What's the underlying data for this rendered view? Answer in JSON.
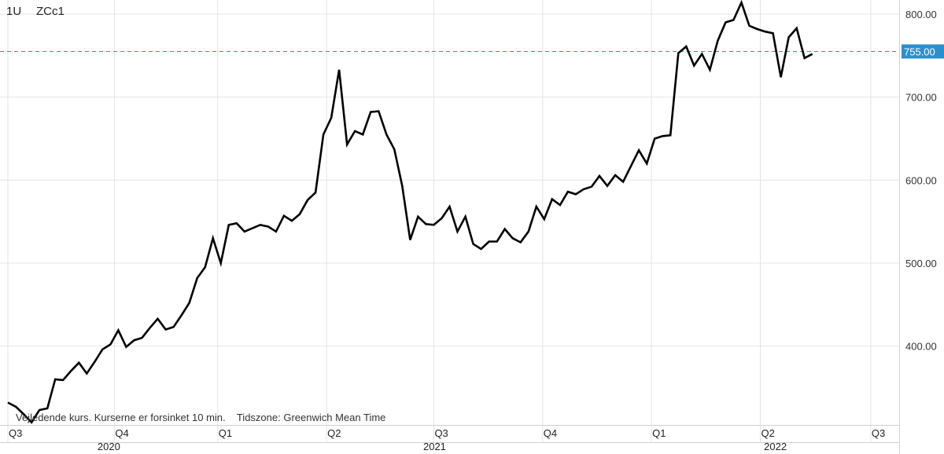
{
  "header": {
    "interval": "1U",
    "symbol": "ZCc1"
  },
  "disclaimer": "Vejledende kurs. Kurserne er forsinket 10 min.    Tidszone: Greenwich Mean Time",
  "colors": {
    "line": "#000000",
    "grid": "#e4e4e4",
    "reference": "#d9534f",
    "marker_bg": "#2b8fcf",
    "marker_text": "#ffffff"
  },
  "chart_data": {
    "type": "line",
    "x_unit": "weeks",
    "ylim": [
      305,
      817
    ],
    "y_ticks": [
      400,
      500,
      600,
      700,
      800
    ],
    "y_tick_labels": [
      "400.00",
      "500.00",
      "600.00",
      "700.00",
      "800.00"
    ],
    "y_axis_side": "right",
    "grid": true,
    "quarters": [
      {
        "label": "Q3",
        "x": 0
      },
      {
        "label": "Q4",
        "x": 13.5
      },
      {
        "label": "Q1",
        "x": 26.6
      },
      {
        "label": "Q2",
        "x": 40.4
      },
      {
        "label": "Q3",
        "x": 54.0
      },
      {
        "label": "Q4",
        "x": 67.8
      },
      {
        "label": "Q1",
        "x": 81.6
      },
      {
        "label": "Q2",
        "x": 95.4
      },
      {
        "label": "Q3",
        "x": 109.4
      }
    ],
    "years": [
      {
        "label": "2020",
        "x_start": -1,
        "x_end": 26.6
      },
      {
        "label": "2021",
        "x_start": 26.6,
        "x_end": 81.6
      },
      {
        "label": "2022",
        "x_start": 81.6,
        "x_end": 113
      }
    ],
    "reference_line": {
      "value": 755,
      "label": "755.00",
      "style": "dashed"
    },
    "x_range": [
      -1,
      113
    ],
    "series": [
      {
        "values": [
          [
            0,
            332
          ],
          [
            1,
            327
          ],
          [
            2,
            318
          ],
          [
            3,
            308
          ],
          [
            4,
            323
          ],
          [
            5,
            325
          ],
          [
            6,
            360
          ],
          [
            7,
            359
          ],
          [
            8,
            370
          ],
          [
            9,
            380
          ],
          [
            10,
            367
          ],
          [
            11,
            381
          ],
          [
            12,
            396
          ],
          [
            13,
            402
          ],
          [
            14,
            419
          ],
          [
            15,
            399
          ],
          [
            16,
            407
          ],
          [
            17,
            410
          ],
          [
            18,
            422
          ],
          [
            19,
            433
          ],
          [
            20,
            420
          ],
          [
            21,
            423
          ],
          [
            22,
            437
          ],
          [
            23,
            452
          ],
          [
            24,
            482
          ],
          [
            25,
            495
          ],
          [
            26,
            530
          ],
          [
            27,
            500
          ],
          [
            28,
            546
          ],
          [
            29,
            548
          ],
          [
            30,
            538
          ],
          [
            31,
            542
          ],
          [
            32,
            546
          ],
          [
            33,
            544
          ],
          [
            34,
            538
          ],
          [
            35,
            557
          ],
          [
            36,
            551
          ],
          [
            37,
            559
          ],
          [
            38,
            576
          ],
          [
            39,
            585
          ],
          [
            40,
            655
          ],
          [
            41,
            675
          ],
          [
            42,
            733
          ],
          [
            43,
            643
          ],
          [
            44,
            659
          ],
          [
            45,
            655
          ],
          [
            46,
            682
          ],
          [
            47,
            683
          ],
          [
            48,
            655
          ],
          [
            49,
            637
          ],
          [
            50,
            593
          ],
          [
            51,
            528
          ],
          [
            52,
            556
          ],
          [
            53,
            547
          ],
          [
            54,
            546
          ],
          [
            55,
            554
          ],
          [
            56,
            568
          ],
          [
            57,
            538
          ],
          [
            58,
            556
          ],
          [
            59,
            523
          ],
          [
            60,
            517
          ],
          [
            61,
            526
          ],
          [
            62,
            526
          ],
          [
            63,
            541
          ],
          [
            64,
            530
          ],
          [
            65,
            525
          ],
          [
            66,
            538
          ],
          [
            67,
            568
          ],
          [
            68,
            553
          ],
          [
            69,
            577
          ],
          [
            70,
            570
          ],
          [
            71,
            586
          ],
          [
            72,
            583
          ],
          [
            73,
            589
          ],
          [
            74,
            592
          ],
          [
            75,
            605
          ],
          [
            76,
            593
          ],
          [
            77,
            606
          ],
          [
            78,
            598
          ],
          [
            79,
            617
          ],
          [
            80,
            636
          ],
          [
            81,
            620
          ],
          [
            82,
            650
          ],
          [
            83,
            653
          ],
          [
            84,
            654
          ],
          [
            85,
            753
          ],
          [
            86,
            761
          ],
          [
            87,
            738
          ],
          [
            88,
            752
          ],
          [
            89,
            733
          ],
          [
            90,
            768
          ],
          [
            91,
            790
          ],
          [
            92,
            793
          ],
          [
            93,
            814
          ],
          [
            94,
            786
          ],
          [
            95,
            782
          ],
          [
            96,
            779
          ],
          [
            97,
            777
          ],
          [
            98,
            724
          ],
          [
            99,
            772
          ],
          [
            100,
            783
          ],
          [
            101,
            747
          ],
          [
            102,
            752
          ]
        ]
      }
    ]
  }
}
